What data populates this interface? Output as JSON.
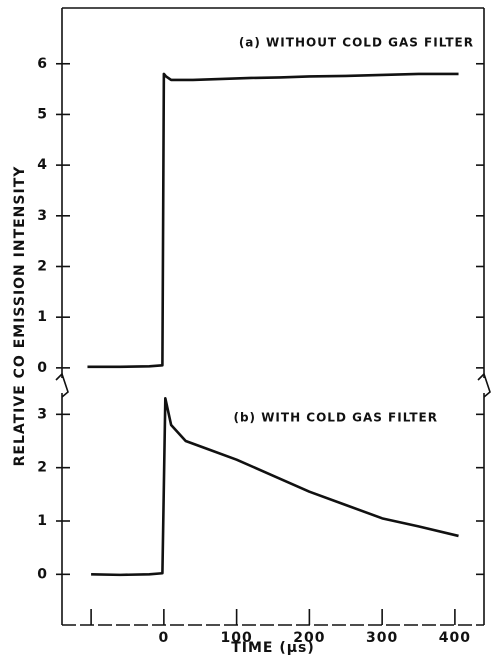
{
  "chart_data": [
    {
      "type": "line",
      "ylabel": "RELATIVE CO EMISSION INTENSITY",
      "annotation": "(a) WITHOUT COLD GAS FILTER",
      "x": [
        -105,
        -60,
        -20,
        -2,
        0,
        3,
        10,
        40,
        80,
        120,
        160,
        200,
        250,
        300,
        350,
        405
      ],
      "series": [
        {
          "name": null,
          "color": "#111111",
          "values": [
            0.02,
            0.02,
            0.03,
            0.05,
            5.8,
            5.75,
            5.68,
            5.68,
            5.7,
            5.72,
            5.73,
            5.75,
            5.76,
            5.78,
            5.8,
            5.8
          ]
        }
      ],
      "xlim": [
        -140,
        440
      ],
      "ylim": [
        -0.2,
        7.1
      ],
      "yticks": [
        0,
        1,
        2,
        3,
        4,
        5,
        6
      ]
    },
    {
      "type": "line",
      "annotation": "(b) WITH COLD GAS FILTER",
      "xlabel": "TIME (µs)",
      "x": [
        -100,
        -60,
        -20,
        -2,
        2,
        10,
        30,
        60,
        100,
        150,
        200,
        250,
        300,
        350,
        405
      ],
      "series": [
        {
          "name": null,
          "color": "#111111",
          "values": [
            0.0,
            -0.01,
            0.0,
            0.02,
            3.3,
            2.8,
            2.5,
            2.35,
            2.15,
            1.85,
            1.55,
            1.3,
            1.05,
            0.9,
            0.72
          ]
        }
      ],
      "xlim": [
        -140,
        440
      ],
      "ylim": [
        -0.95,
        3.4
      ],
      "yticks": [
        0,
        1,
        2,
        3
      ],
      "xticks": [
        {
          "value": -100,
          "label": null
        },
        0,
        100,
        200,
        300,
        400
      ]
    }
  ]
}
